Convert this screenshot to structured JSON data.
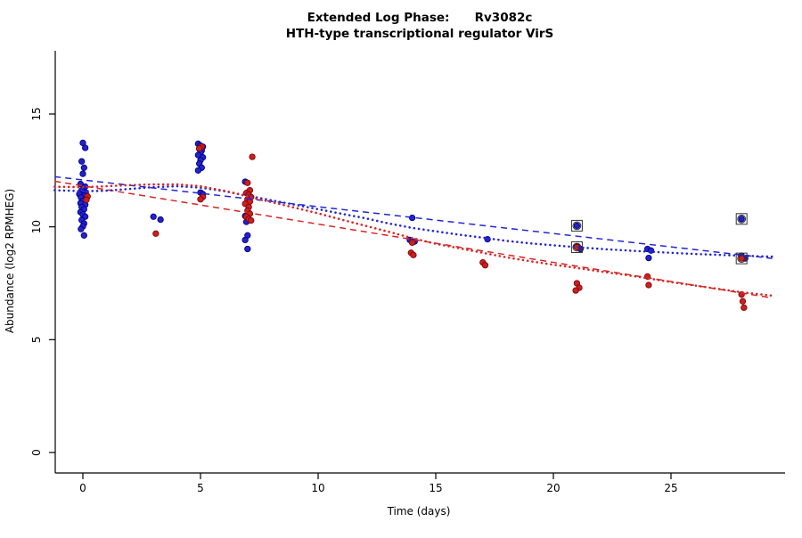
{
  "chart_data": {
    "type": "scatter",
    "title_line1": "Extended Log Phase:      Rv3082c",
    "title_line2": "HTH-type transcriptional regulator VirS",
    "xlabel": "Time  (days)",
    "ylabel": "Abundance  (log2 RPMHEG)",
    "xlim": [
      -1.2,
      29.3
    ],
    "ylim": [
      -0.5,
      16.5
    ],
    "xticks": [
      0,
      5,
      10,
      15,
      20,
      25
    ],
    "yticks": [
      0,
      5,
      10,
      15
    ],
    "grid": false,
    "legend": "none",
    "colors": {
      "blue_fill": "#2323c8",
      "blue_stroke": "#00008b",
      "red_fill": "#c62222",
      "red_stroke": "#8b0000",
      "blue_line": "#2525d8",
      "red_line": "#d82525",
      "outlier_box": "#333333"
    },
    "series": [
      {
        "name": "condition-blue",
        "color_key": "blue",
        "points": [
          [
            0.0,
            13.72
          ],
          [
            0.1,
            13.5
          ],
          [
            -0.05,
            12.9
          ],
          [
            0.05,
            12.62
          ],
          [
            0.0,
            12.35
          ],
          [
            -0.1,
            11.9
          ],
          [
            0.1,
            11.78
          ],
          [
            -0.05,
            11.62
          ],
          [
            0.12,
            11.52
          ],
          [
            -0.15,
            11.45
          ],
          [
            0.05,
            11.38
          ],
          [
            -0.08,
            11.3
          ],
          [
            0.15,
            11.22
          ],
          [
            0.0,
            11.15
          ],
          [
            -0.1,
            11.05
          ],
          [
            0.1,
            10.98
          ],
          [
            -0.05,
            10.88
          ],
          [
            0.05,
            10.78
          ],
          [
            -0.1,
            10.65
          ],
          [
            0.0,
            10.55
          ],
          [
            0.1,
            10.45
          ],
          [
            -0.05,
            10.3
          ],
          [
            0.05,
            10.15
          ],
          [
            0.0,
            10.02
          ],
          [
            -0.08,
            9.9
          ],
          [
            0.05,
            9.62
          ],
          [
            3.0,
            10.45
          ],
          [
            3.3,
            10.32
          ],
          [
            4.9,
            13.68
          ],
          [
            5.0,
            13.6
          ],
          [
            5.1,
            13.55
          ],
          [
            4.95,
            13.45
          ],
          [
            5.05,
            13.38
          ],
          [
            5.0,
            13.28
          ],
          [
            4.9,
            13.18
          ],
          [
            5.1,
            13.08
          ],
          [
            5.0,
            12.95
          ],
          [
            4.95,
            12.8
          ],
          [
            5.05,
            12.62
          ],
          [
            4.9,
            12.5
          ],
          [
            5.0,
            11.52
          ],
          [
            5.1,
            11.45
          ],
          [
            6.9,
            12.0
          ],
          [
            7.0,
            11.52
          ],
          [
            6.95,
            11.05
          ],
          [
            7.05,
            10.62
          ],
          [
            6.9,
            10.48
          ],
          [
            7.0,
            10.38
          ],
          [
            7.1,
            10.3
          ],
          [
            6.95,
            10.22
          ],
          [
            7.0,
            9.62
          ],
          [
            6.9,
            9.42
          ],
          [
            7.0,
            9.02
          ],
          [
            14.0,
            10.4
          ],
          [
            13.9,
            9.42
          ],
          [
            14.1,
            9.35
          ],
          [
            17.2,
            9.45
          ],
          [
            21.0,
            10.05
          ],
          [
            21.0,
            9.12
          ],
          [
            21.15,
            9.02
          ],
          [
            24.0,
            9.02
          ],
          [
            24.15,
            8.95
          ],
          [
            24.05,
            8.62
          ],
          [
            28.0,
            10.35
          ],
          [
            28.0,
            8.72
          ],
          [
            28.15,
            8.6
          ]
        ]
      },
      {
        "name": "condition-red",
        "color_key": "red",
        "points": [
          [
            0.2,
            11.35
          ],
          [
            0.15,
            11.2
          ],
          [
            3.1,
            9.7
          ],
          [
            5.05,
            13.55
          ],
          [
            4.95,
            13.48
          ],
          [
            5.1,
            11.32
          ],
          [
            5.0,
            11.22
          ],
          [
            7.2,
            13.1
          ],
          [
            7.0,
            11.95
          ],
          [
            7.1,
            11.62
          ],
          [
            6.95,
            11.5
          ],
          [
            7.05,
            11.42
          ],
          [
            7.15,
            11.32
          ],
          [
            7.0,
            11.22
          ],
          [
            7.1,
            11.12
          ],
          [
            6.9,
            11.02
          ],
          [
            7.05,
            10.88
          ],
          [
            7.0,
            10.72
          ],
          [
            7.1,
            10.58
          ],
          [
            6.95,
            10.45
          ],
          [
            7.05,
            10.35
          ],
          [
            7.15,
            10.28
          ],
          [
            14.0,
            9.3
          ],
          [
            13.95,
            8.85
          ],
          [
            14.05,
            8.75
          ],
          [
            17.0,
            8.42
          ],
          [
            17.1,
            8.3
          ],
          [
            21.0,
            9.1
          ],
          [
            21.0,
            7.5
          ],
          [
            21.1,
            7.3
          ],
          [
            20.95,
            7.18
          ],
          [
            24.0,
            7.8
          ],
          [
            24.05,
            7.42
          ],
          [
            28.0,
            8.6
          ],
          [
            28.0,
            7.0
          ],
          [
            28.05,
            6.7
          ],
          [
            28.1,
            6.42
          ]
        ]
      }
    ],
    "outliers_boxed": [
      [
        21,
        10.05
      ],
      [
        21,
        9.1
      ],
      [
        28,
        10.35
      ],
      [
        28,
        8.6
      ]
    ],
    "curves": [
      {
        "name": "blue-linear-fit",
        "color_key": "blue",
        "style": "dashed",
        "points": [
          [
            -1.2,
            12.22
          ],
          [
            29.3,
            8.6
          ]
        ]
      },
      {
        "name": "red-linear-fit",
        "color_key": "red",
        "style": "dashed",
        "points": [
          [
            -1.2,
            12.02
          ],
          [
            29.3,
            6.85
          ]
        ]
      },
      {
        "name": "blue-smooth-fit",
        "color_key": "blue",
        "style": "dotted",
        "points": [
          [
            -1.2,
            11.62
          ],
          [
            0,
            11.58
          ],
          [
            1,
            11.6
          ],
          [
            2,
            11.68
          ],
          [
            3,
            11.76
          ],
          [
            4,
            11.8
          ],
          [
            5,
            11.74
          ],
          [
            6,
            11.58
          ],
          [
            7,
            11.38
          ],
          [
            8,
            11.18
          ],
          [
            9,
            10.98
          ],
          [
            10,
            10.78
          ],
          [
            11,
            10.58
          ],
          [
            12,
            10.38
          ],
          [
            13,
            10.15
          ],
          [
            14,
            9.95
          ],
          [
            15,
            9.8
          ],
          [
            16,
            9.65
          ],
          [
            17,
            9.52
          ],
          [
            18,
            9.38
          ],
          [
            19,
            9.27
          ],
          [
            20,
            9.18
          ],
          [
            21,
            9.1
          ],
          [
            22,
            9.02
          ],
          [
            23,
            8.96
          ],
          [
            24,
            8.9
          ],
          [
            25,
            8.85
          ],
          [
            26,
            8.8
          ],
          [
            27,
            8.76
          ],
          [
            28,
            8.72
          ],
          [
            29.3,
            8.68
          ]
        ]
      },
      {
        "name": "red-smooth-fit",
        "color_key": "red",
        "style": "dotted",
        "points": [
          [
            -1.2,
            11.78
          ],
          [
            0,
            11.76
          ],
          [
            1,
            11.8
          ],
          [
            2,
            11.85
          ],
          [
            3,
            11.88
          ],
          [
            4,
            11.88
          ],
          [
            5,
            11.8
          ],
          [
            6,
            11.6
          ],
          [
            7,
            11.35
          ],
          [
            8,
            11.1
          ],
          [
            9,
            10.85
          ],
          [
            10,
            10.6
          ],
          [
            11,
            10.32
          ],
          [
            12,
            10.05
          ],
          [
            13,
            9.78
          ],
          [
            14,
            9.5
          ],
          [
            15,
            9.25
          ],
          [
            16,
            9.05
          ],
          [
            17,
            8.85
          ],
          [
            18,
            8.65
          ],
          [
            19,
            8.48
          ],
          [
            20,
            8.32
          ],
          [
            21,
            8.18
          ],
          [
            22,
            8.02
          ],
          [
            23,
            7.88
          ],
          [
            24,
            7.72
          ],
          [
            25,
            7.55
          ],
          [
            26,
            7.4
          ],
          [
            27,
            7.25
          ],
          [
            28,
            7.1
          ],
          [
            29.3,
            6.95
          ]
        ]
      }
    ]
  }
}
